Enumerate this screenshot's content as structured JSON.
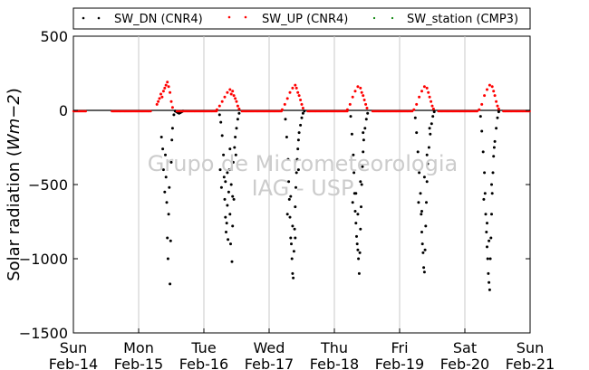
{
  "chart_data": {
    "type": "scatter",
    "title": "",
    "xlabel": "",
    "ylabel_text": "Solar radiation (",
    "ylabel_unit": "Wm−2",
    "ylabel_close": ")",
    "ylim": [
      -1500,
      500
    ],
    "yticks": [
      500,
      0,
      -500,
      -1000,
      -1500
    ],
    "ytick_labels": [
      "500",
      "0",
      "−500",
      "−1000",
      "−1500"
    ],
    "xlim": [
      "2016-02-14",
      "2016-02-21"
    ],
    "xticks": [
      {
        "day": "Sun",
        "date": "Feb-14"
      },
      {
        "day": "Mon",
        "date": "Feb-15"
      },
      {
        "day": "Tue",
        "date": "Feb-16"
      },
      {
        "day": "Wed",
        "date": "Feb-17"
      },
      {
        "day": "Thu",
        "date": "Feb-18"
      },
      {
        "day": "Fri",
        "date": "Feb-19"
      },
      {
        "day": "Sat",
        "date": "Feb-20"
      },
      {
        "day": "Sun",
        "date": "Feb-21"
      }
    ],
    "grid": "vertical",
    "legend_position": "top",
    "watermark": [
      "Grupo de Micrometeorologia",
      "IAG - USP"
    ],
    "series": [
      {
        "name": "SW_DN (CNR4)",
        "color": "#000000",
        "points": [
          [
            1.35,
            -180
          ],
          [
            1.37,
            -260
          ],
          [
            1.38,
            -400
          ],
          [
            1.4,
            -550
          ],
          [
            1.41,
            -300
          ],
          [
            1.42,
            -450
          ],
          [
            1.43,
            -620
          ],
          [
            1.44,
            -860
          ],
          [
            1.45,
            -1000
          ],
          [
            1.46,
            -700
          ],
          [
            1.47,
            -520
          ],
          [
            1.48,
            -1170
          ],
          [
            1.49,
            -880
          ],
          [
            1.5,
            -350
          ],
          [
            1.51,
            -200
          ],
          [
            1.52,
            -120
          ],
          [
            1.54,
            -30
          ],
          [
            1.56,
            -5
          ],
          [
            1.58,
            -10
          ],
          [
            1.6,
            -15
          ],
          [
            1.62,
            -20
          ],
          [
            1.64,
            -15
          ],
          [
            1.66,
            -10
          ],
          [
            1.68,
            -5
          ],
          [
            2.24,
            -30
          ],
          [
            2.26,
            -80
          ],
          [
            2.28,
            -170
          ],
          [
            2.3,
            -300
          ],
          [
            2.31,
            -450
          ],
          [
            2.32,
            -600
          ],
          [
            2.33,
            -720
          ],
          [
            2.34,
            -820
          ],
          [
            2.35,
            -760
          ],
          [
            2.36,
            -640
          ],
          [
            2.37,
            -870
          ],
          [
            2.38,
            -550
          ],
          [
            2.39,
            -400
          ],
          [
            2.4,
            -700
          ],
          [
            2.41,
            -900
          ],
          [
            2.42,
            -500
          ],
          [
            2.43,
            -1020
          ],
          [
            2.44,
            -780
          ],
          [
            2.45,
            -350
          ],
          [
            2.46,
            -600
          ],
          [
            2.47,
            -250
          ],
          [
            2.48,
            -180
          ],
          [
            2.5,
            -120
          ],
          [
            2.52,
            -60
          ],
          [
            2.54,
            -20
          ],
          [
            2.25,
            -400
          ],
          [
            2.27,
            -520
          ],
          [
            2.33,
            -480
          ],
          [
            2.36,
            -420
          ],
          [
            2.4,
            -260
          ],
          [
            2.44,
            -580
          ],
          [
            2.49,
            -300
          ],
          [
            3.25,
            -60
          ],
          [
            3.27,
            -180
          ],
          [
            3.29,
            -330
          ],
          [
            3.3,
            -480
          ],
          [
            3.31,
            -600
          ],
          [
            3.32,
            -720
          ],
          [
            3.33,
            -860
          ],
          [
            3.34,
            -900
          ],
          [
            3.35,
            -1000
          ],
          [
            3.36,
            -1100
          ],
          [
            3.37,
            -1130
          ],
          [
            3.38,
            -950
          ],
          [
            3.39,
            -800
          ],
          [
            3.4,
            -650
          ],
          [
            3.41,
            -520
          ],
          [
            3.42,
            -420
          ],
          [
            3.43,
            -330
          ],
          [
            3.44,
            -260
          ],
          [
            3.45,
            -200
          ],
          [
            3.46,
            -150
          ],
          [
            3.48,
            -100
          ],
          [
            3.5,
            -50
          ],
          [
            3.52,
            -20
          ],
          [
            3.54,
            -5
          ],
          [
            3.28,
            -700
          ],
          [
            3.33,
            -580
          ],
          [
            3.36,
            -780
          ],
          [
            3.4,
            -860
          ],
          [
            3.45,
            -400
          ],
          [
            4.25,
            -40
          ],
          [
            4.27,
            -160
          ],
          [
            4.29,
            -300
          ],
          [
            4.3,
            -420
          ],
          [
            4.31,
            -560
          ],
          [
            4.32,
            -680
          ],
          [
            4.33,
            -760
          ],
          [
            4.34,
            -850
          ],
          [
            4.35,
            -900
          ],
          [
            4.36,
            -940
          ],
          [
            4.37,
            -1000
          ],
          [
            4.38,
            -1100
          ],
          [
            4.39,
            -960
          ],
          [
            4.4,
            -800
          ],
          [
            4.41,
            -650
          ],
          [
            4.42,
            -500
          ],
          [
            4.43,
            -380
          ],
          [
            4.44,
            -280
          ],
          [
            4.45,
            -200
          ],
          [
            4.47,
            -120
          ],
          [
            4.49,
            -60
          ],
          [
            4.51,
            -20
          ],
          [
            4.28,
            -620
          ],
          [
            4.33,
            -560
          ],
          [
            4.36,
            -700
          ],
          [
            4.4,
            -480
          ],
          [
            4.44,
            -150
          ],
          [
            5.24,
            -50
          ],
          [
            5.26,
            -150
          ],
          [
            5.28,
            -280
          ],
          [
            5.3,
            -420
          ],
          [
            5.32,
            -560
          ],
          [
            5.33,
            -700
          ],
          [
            5.34,
            -820
          ],
          [
            5.35,
            -900
          ],
          [
            5.36,
            -960
          ],
          [
            5.37,
            -1060
          ],
          [
            5.38,
            -1090
          ],
          [
            5.39,
            -940
          ],
          [
            5.4,
            -780
          ],
          [
            5.41,
            -620
          ],
          [
            5.42,
            -480
          ],
          [
            5.43,
            -360
          ],
          [
            5.45,
            -250
          ],
          [
            5.47,
            -160
          ],
          [
            5.49,
            -90
          ],
          [
            5.51,
            -40
          ],
          [
            5.53,
            -10
          ],
          [
            5.29,
            -620
          ],
          [
            5.34,
            -680
          ],
          [
            5.38,
            -450
          ],
          [
            5.42,
            -300
          ],
          [
            5.46,
            -120
          ],
          [
            6.24,
            -40
          ],
          [
            6.26,
            -140
          ],
          [
            6.28,
            -280
          ],
          [
            6.3,
            -420
          ],
          [
            6.31,
            -560
          ],
          [
            6.32,
            -700
          ],
          [
            6.33,
            -820
          ],
          [
            6.34,
            -920
          ],
          [
            6.35,
            -1000
          ],
          [
            6.36,
            -1100
          ],
          [
            6.37,
            -1160
          ],
          [
            6.38,
            -1210
          ],
          [
            6.39,
            -1000
          ],
          [
            6.4,
            -860
          ],
          [
            6.41,
            -700
          ],
          [
            6.42,
            -560
          ],
          [
            6.43,
            -420
          ],
          [
            6.44,
            -310
          ],
          [
            6.46,
            -210
          ],
          [
            6.48,
            -120
          ],
          [
            6.5,
            -50
          ],
          [
            6.52,
            -10
          ],
          [
            6.29,
            -600
          ],
          [
            6.34,
            -760
          ],
          [
            6.37,
            -880
          ],
          [
            6.41,
            -500
          ],
          [
            6.45,
            -250
          ]
        ]
      },
      {
        "name": "SW_UP (CNR4)",
        "color": "#ff0000",
        "points": [
          [
            1.28,
            40
          ],
          [
            1.3,
            60
          ],
          [
            1.32,
            80
          ],
          [
            1.34,
            110
          ],
          [
            1.36,
            90
          ],
          [
            1.38,
            130
          ],
          [
            1.4,
            150
          ],
          [
            1.42,
            170
          ],
          [
            1.44,
            190
          ],
          [
            1.46,
            160
          ],
          [
            1.48,
            120
          ],
          [
            1.5,
            60
          ],
          [
            1.52,
            20
          ],
          [
            2.2,
            5
          ],
          [
            2.24,
            30
          ],
          [
            2.28,
            60
          ],
          [
            2.32,
            90
          ],
          [
            2.36,
            120
          ],
          [
            2.4,
            140
          ],
          [
            2.42,
            110
          ],
          [
            2.44,
            130
          ],
          [
            2.46,
            100
          ],
          [
            2.48,
            80
          ],
          [
            2.5,
            60
          ],
          [
            2.52,
            30
          ],
          [
            2.54,
            10
          ],
          [
            3.2,
            5
          ],
          [
            3.24,
            40
          ],
          [
            3.28,
            80
          ],
          [
            3.32,
            120
          ],
          [
            3.36,
            150
          ],
          [
            3.4,
            170
          ],
          [
            3.42,
            150
          ],
          [
            3.44,
            120
          ],
          [
            3.46,
            100
          ],
          [
            3.48,
            70
          ],
          [
            3.5,
            40
          ],
          [
            3.52,
            15
          ],
          [
            4.2,
            5
          ],
          [
            4.24,
            40
          ],
          [
            4.28,
            90
          ],
          [
            4.32,
            130
          ],
          [
            4.36,
            160
          ],
          [
            4.4,
            150
          ],
          [
            4.42,
            120
          ],
          [
            4.44,
            100
          ],
          [
            4.46,
            70
          ],
          [
            4.48,
            40
          ],
          [
            4.5,
            15
          ],
          [
            5.22,
            5
          ],
          [
            5.26,
            40
          ],
          [
            5.3,
            90
          ],
          [
            5.34,
            130
          ],
          [
            5.38,
            160
          ],
          [
            5.42,
            150
          ],
          [
            5.44,
            120
          ],
          [
            5.46,
            90
          ],
          [
            5.48,
            60
          ],
          [
            5.5,
            30
          ],
          [
            5.52,
            10
          ],
          [
            6.22,
            5
          ],
          [
            6.26,
            40
          ],
          [
            6.3,
            100
          ],
          [
            6.34,
            140
          ],
          [
            6.38,
            170
          ],
          [
            6.42,
            160
          ],
          [
            6.44,
            130
          ],
          [
            6.46,
            100
          ],
          [
            6.48,
            60
          ],
          [
            6.5,
            30
          ],
          [
            6.52,
            10
          ]
        ]
      },
      {
        "name": "SW_station (CMP3)",
        "color": "#008000",
        "points": []
      }
    ]
  }
}
